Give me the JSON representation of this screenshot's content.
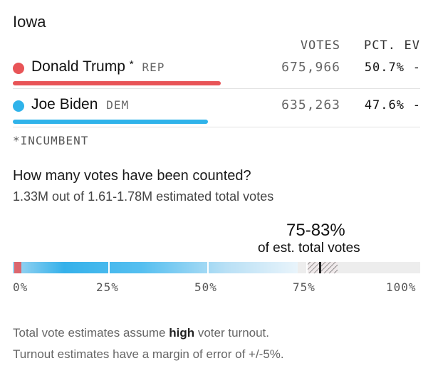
{
  "state": "Iowa",
  "headers": {
    "votes": "VOTES",
    "pct": "PCT.",
    "ev": "EV"
  },
  "candidates": [
    {
      "name": "Donald Trump",
      "marker": "*",
      "party": "REP",
      "votes": "675,966",
      "pct": "50.7%",
      "ev": "-",
      "color": "#e85457",
      "share": 0.507
    },
    {
      "name": "Joe Biden",
      "marker": "",
      "party": "DEM",
      "votes": "635,263",
      "pct": "47.6%",
      "ev": "-",
      "color": "#2fb3ea",
      "share": 0.476
    }
  ],
  "incumbent_note": "*INCUMBENT",
  "counted": {
    "title": "How many votes have been counted?",
    "subtitle": "1.33M out of 1.61-1.78M estimated total votes",
    "range_big": "75-83%",
    "range_small": "of est. total votes",
    "progress_ticks": [
      "0%",
      "25%",
      "50%",
      "75%",
      "100%"
    ],
    "estimate_low": 0.75,
    "estimate_high": 0.83
  },
  "footnote": {
    "line1_pre": "Total vote estimates assume ",
    "line1_bold": "high",
    "line1_post": " voter turnout.",
    "line2": "Turnout estimates have a margin of error of +/-5%."
  },
  "colors": {
    "rep": "#e85457",
    "dem": "#2fb3ea"
  }
}
